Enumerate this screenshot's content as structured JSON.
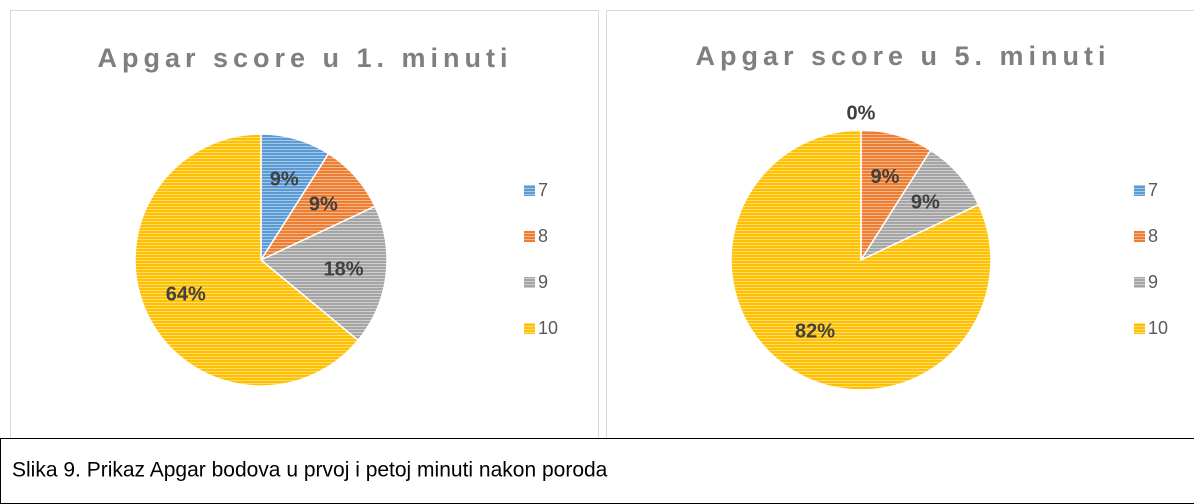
{
  "chart_data": [
    {
      "type": "pie",
      "title": "Apgar score u 1. minuti",
      "categories": [
        "7",
        "8",
        "9",
        "10"
      ],
      "values": [
        9,
        9,
        18,
        64
      ],
      "value_labels": [
        "9%",
        "9%",
        "18%",
        "64%"
      ],
      "colors": [
        "#5b9bd5",
        "#ed7d31",
        "#a5a5a5",
        "#ffc000"
      ],
      "legend": "right"
    },
    {
      "type": "pie",
      "title": "Apgar score u 5. minuti",
      "categories": [
        "7",
        "8",
        "9",
        "10"
      ],
      "values": [
        0,
        9,
        9,
        82
      ],
      "value_labels": [
        "0%",
        "9%",
        "9%",
        "82%"
      ],
      "colors": [
        "#5b9bd5",
        "#ed7d31",
        "#a5a5a5",
        "#ffc000"
      ],
      "legend": "right"
    }
  ],
  "caption": "Slika 9. Prikaz Apgar bodova u prvoj i petoj minuti nakon poroda"
}
